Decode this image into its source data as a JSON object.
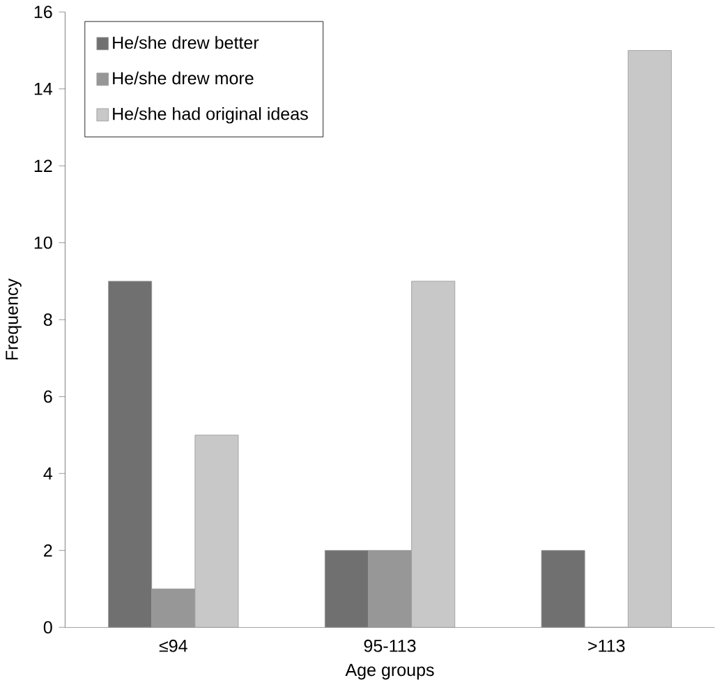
{
  "chart_data": {
    "type": "bar",
    "xlabel": "Age groups",
    "ylabel": "Frequency",
    "categories": [
      "≤94",
      "95-113",
      ">113"
    ],
    "series": [
      {
        "name": "He/she drew better",
        "color": "#707070",
        "values": [
          9,
          2,
          2
        ]
      },
      {
        "name": "He/she drew more",
        "color": "#979797",
        "values": [
          1,
          2,
          0
        ]
      },
      {
        "name": "He/she had original ideas",
        "color": "#c8c8c8",
        "values": [
          5,
          9,
          15
        ]
      }
    ],
    "ylim": [
      0,
      16
    ],
    "yticks": [
      0,
      2,
      4,
      6,
      8,
      10,
      12,
      14,
      16
    ],
    "legend": "top left",
    "grid": false
  }
}
